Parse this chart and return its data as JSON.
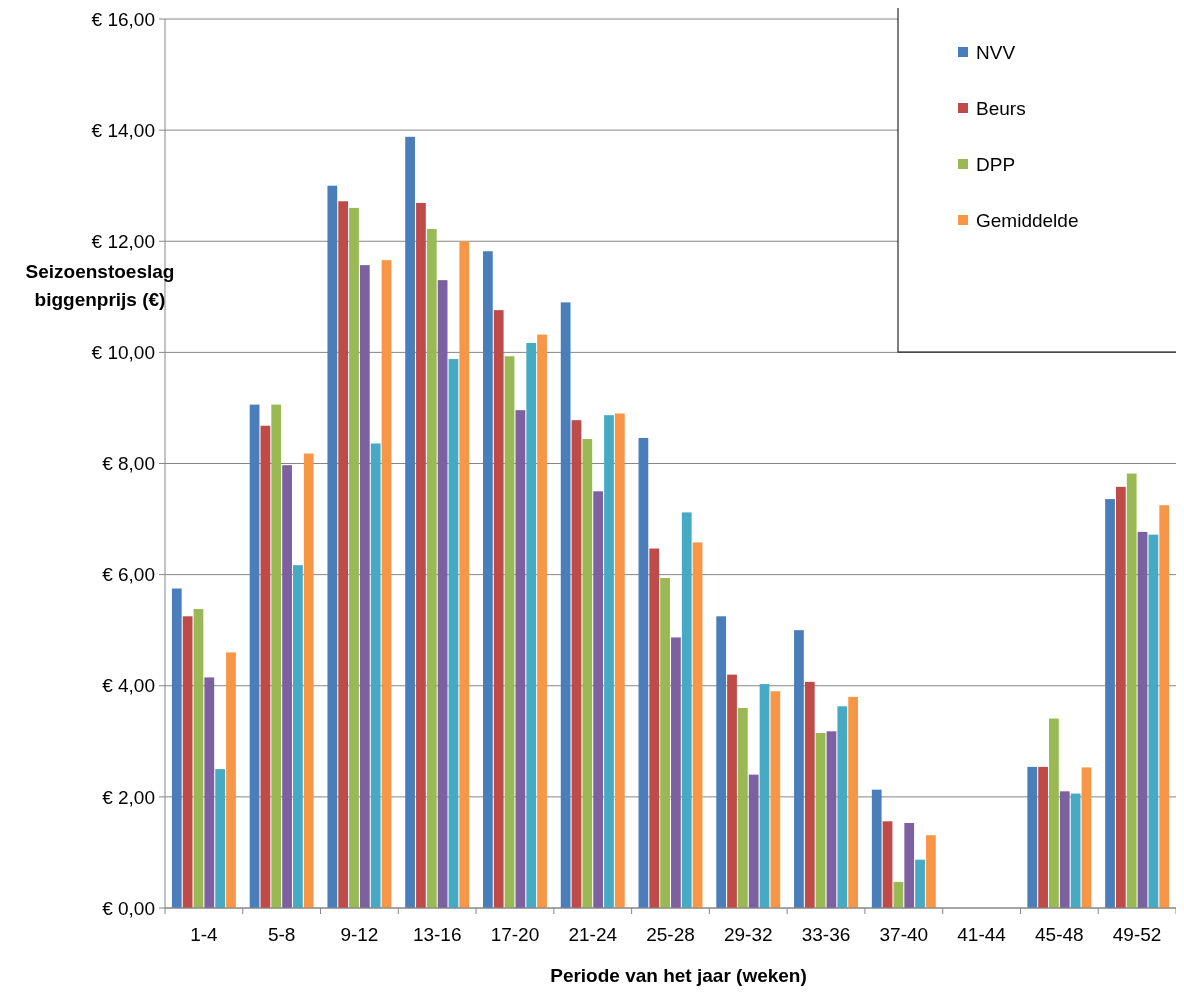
{
  "chart_data": {
    "type": "bar",
    "xlabel": "Periode van het jaar (weken)",
    "ylabel": "Seizoenstoeslag biggenprijs (€)",
    "categories": [
      "1-4",
      "5-8",
      "9-12",
      "13-16",
      "17-20",
      "21-24",
      "25-28",
      "29-32",
      "33-36",
      "37-40",
      "41-44",
      "45-48",
      "49-52"
    ],
    "series": [
      {
        "name": "NVV",
        "color": "#4a7ebb",
        "values": [
          5.75,
          9.06,
          13.0,
          13.88,
          11.82,
          10.9,
          8.46,
          5.25,
          5.0,
          2.13,
          0,
          2.54,
          7.36
        ]
      },
      {
        "name": "Beurs",
        "color": "#be4b48",
        "values": [
          5.25,
          8.68,
          12.72,
          12.69,
          10.76,
          8.78,
          6.47,
          4.2,
          4.07,
          1.56,
          0,
          2.54,
          7.58
        ]
      },
      {
        "name": "DPP",
        "color": "#98b954",
        "values": [
          5.38,
          9.06,
          12.6,
          12.22,
          9.93,
          8.44,
          5.94,
          3.6,
          3.15,
          0.47,
          0,
          3.41,
          7.82
        ]
      },
      {
        "color": "#7d60a0",
        "values": [
          4.15,
          7.97,
          11.57,
          11.3,
          8.96,
          7.5,
          4.87,
          2.4,
          3.18,
          1.53,
          0,
          2.1,
          6.77
        ]
      },
      {
        "color": "#46aac5",
        "values": [
          2.5,
          6.17,
          8.36,
          9.88,
          10.17,
          8.87,
          7.12,
          4.03,
          3.63,
          0.87,
          0,
          2.06,
          6.72
        ]
      },
      {
        "name": "Gemiddelde",
        "color": "#f79646",
        "values": [
          4.6,
          8.18,
          11.66,
          12.0,
          10.32,
          8.9,
          6.58,
          3.9,
          3.8,
          1.31,
          0,
          2.53,
          7.25
        ]
      }
    ],
    "ylim": [
      0,
      16
    ],
    "yticks": [
      {
        "value": 0,
        "label": "€ 0,00"
      },
      {
        "value": 2,
        "label": "€ 2,00"
      },
      {
        "value": 4,
        "label": "€ 4,00"
      },
      {
        "value": 6,
        "label": "€ 6,00"
      },
      {
        "value": 8,
        "label": "€ 8,00"
      },
      {
        "value": 10,
        "label": "€ 10,00"
      },
      {
        "value": 12,
        "label": "€ 12,00"
      },
      {
        "value": 14,
        "label": "€ 14,00"
      },
      {
        "value": 16,
        "label": "€ 16,00"
      }
    ],
    "grid": "y",
    "legend": "top right"
  }
}
